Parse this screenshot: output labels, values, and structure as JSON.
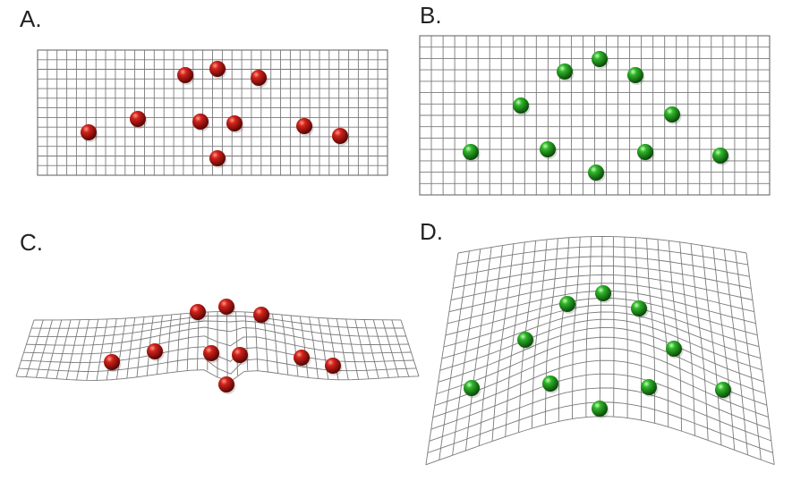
{
  "panels": [
    {
      "id": "a",
      "label": "A.",
      "sphere_color": "#b3140f",
      "grid": "flat"
    },
    {
      "id": "b",
      "label": "B.",
      "sphere_color": "#22a322",
      "grid": "flat"
    },
    {
      "id": "c",
      "label": "C.",
      "sphere_color": "#b3140f",
      "grid": "deformed"
    },
    {
      "id": "d",
      "label": "D.",
      "sphere_color": "#22a322",
      "grid": "deformed"
    }
  ],
  "grid_color": "#7a7a7a"
}
